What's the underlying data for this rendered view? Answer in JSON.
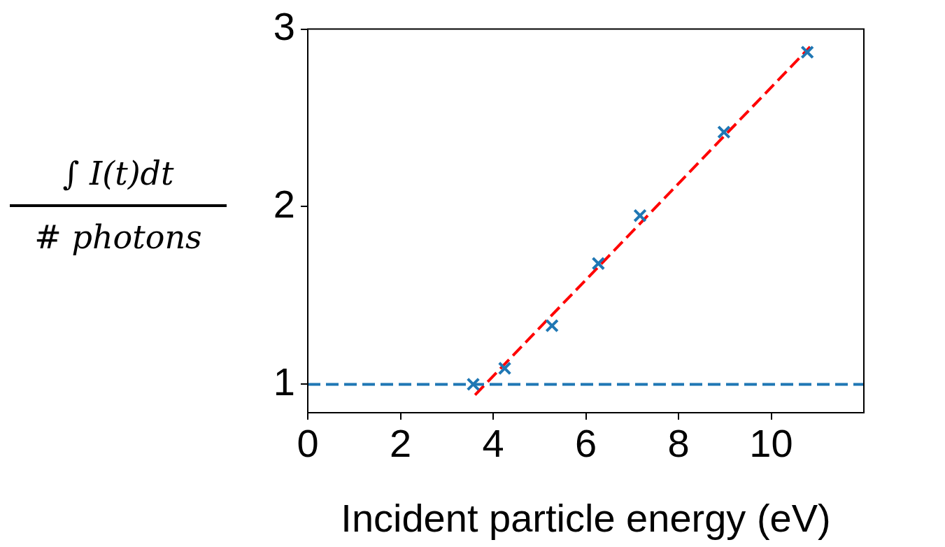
{
  "chart_data": {
    "type": "scatter",
    "xlabel": "Incident particle energy (eV)",
    "ylabel": "∫ I(t)dt\n# photons",
    "x": [
      3.57,
      4.25,
      5.27,
      6.27,
      7.17,
      8.98,
      10.78
    ],
    "xlim": [
      0,
      12
    ],
    "xticks": [
      0,
      2,
      4,
      6,
      8,
      10
    ],
    "ylim": [
      0.84,
      3
    ],
    "yticks": [
      1,
      2,
      3
    ],
    "grid": false,
    "legend": false,
    "marker": "cross",
    "series": [
      {
        "color": "#1f77b4",
        "values": [
          1.0,
          1.09,
          1.33,
          1.68,
          1.95,
          2.42,
          2.87
        ]
      },
      {
        "type": "line",
        "x": [
          3.61,
          10.84
        ],
        "values": [
          0.94,
          2.9
        ],
        "color": "#ff0000",
        "line_style": "dashed",
        "marker": "none"
      }
    ],
    "ref_lines": [
      {
        "axis": "y",
        "value": 1,
        "color": "#1f77b4",
        "line_style": "dashed"
      }
    ]
  }
}
